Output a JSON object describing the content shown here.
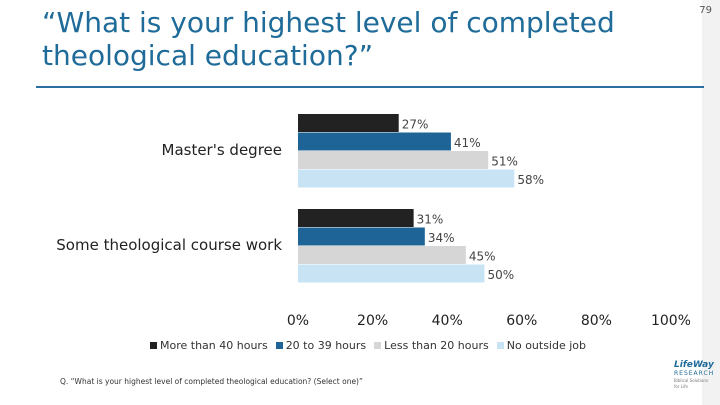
{
  "page": {
    "number": "79"
  },
  "title": "“What is your highest level of completed theological education?”",
  "footnote": "Q. “What is your highest level of completed theological education? (Select one)”",
  "logo": {
    "line1": "LifeWay",
    "line2": "RESEARCH",
    "line3": "Biblical Solutions for Life"
  },
  "colors": {
    "series1": "#222222",
    "series2": "#1f6496",
    "series3": "#d6d6d6",
    "series4": "#c8e4f4",
    "title": "#1f6b99"
  },
  "chart_data": {
    "type": "bar",
    "orientation": "horizontal",
    "categories": [
      "Master's degree",
      "Some theological course work"
    ],
    "series": [
      {
        "name": "More than 40 hours",
        "values": [
          27,
          31
        ]
      },
      {
        "name": "20 to 39 hours",
        "values": [
          41,
          34
        ]
      },
      {
        "name": "Less than 20 hours",
        "values": [
          51,
          45
        ]
      },
      {
        "name": "No outside job",
        "values": [
          58,
          50
        ]
      }
    ],
    "value_suffix": "%",
    "xlim": [
      0,
      100
    ],
    "xticks": [
      "0%",
      "20%",
      "40%",
      "60%",
      "80%",
      "100%"
    ],
    "legend_position": "bottom",
    "grid": false
  }
}
